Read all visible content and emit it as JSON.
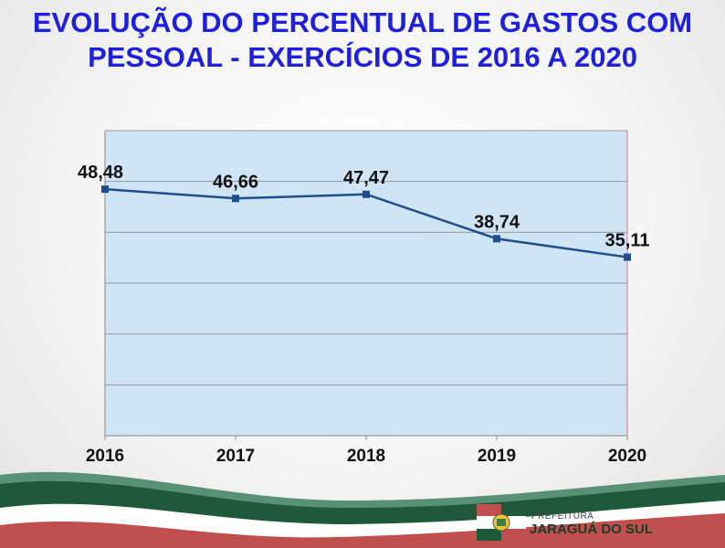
{
  "title": {
    "line1": "EVOLUÇÃO DO PERCENTUAL DE GASTOS COM",
    "line2": "PESSOAL - EXERCÍCIOS DE 2016 A 2020"
  },
  "chart_data": {
    "type": "line",
    "categories": [
      "2016",
      "2017",
      "2018",
      "2019",
      "2020"
    ],
    "values": [
      48.48,
      46.66,
      47.47,
      38.74,
      35.11
    ],
    "data_labels": [
      "48,48",
      "46,66",
      "47,47",
      "38,74",
      "35,11"
    ],
    "ylim": [
      0,
      60
    ],
    "grid": true,
    "colors": {
      "line": "#1f4e8c",
      "plot_bg": "#cfe4f4",
      "grid": "#9a9a9a",
      "right_border": "#e07080"
    }
  },
  "footer": {
    "logo_small": "PREFEITURA",
    "logo_big": "JARAGUÁ DO SUL",
    "colors": {
      "green": "#1e5a3a",
      "red": "#c0504d",
      "white": "#ffffff"
    }
  }
}
